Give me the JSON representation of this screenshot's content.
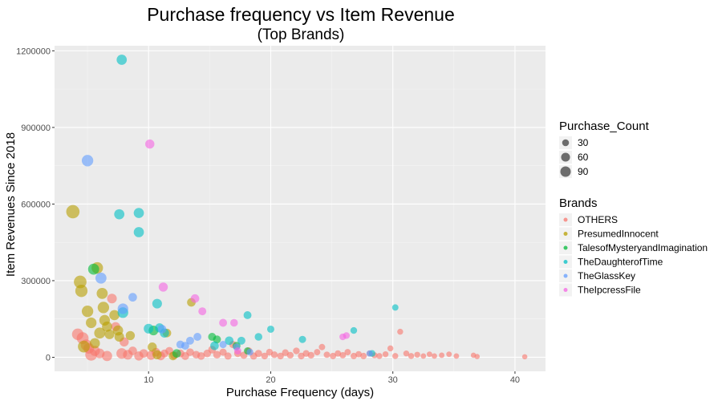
{
  "chart_data": {
    "type": "scatter",
    "title": "Purchase frequency vs Item Revenue",
    "subtitle": "(Top Brands)",
    "xlabel": "Purchase Frequency (days)",
    "ylabel": "Item Revenues Since 2018",
    "xlim": [
      2.3,
      42.5
    ],
    "ylim": [
      -55000,
      1220000
    ],
    "x_ticks": [
      10,
      20,
      30,
      40
    ],
    "y_ticks": [
      0,
      300000,
      600000,
      900000,
      1200000
    ],
    "x_tick_labels": [
      "10",
      "20",
      "30",
      "40"
    ],
    "y_tick_labels": [
      "0",
      "300000",
      "600000",
      "900000",
      "1200000"
    ],
    "grid": true,
    "size_legend": {
      "title": "Purchase_Count",
      "entries": [
        {
          "label": "30",
          "count": 30
        },
        {
          "label": "60",
          "count": 60
        },
        {
          "label": "90",
          "count": 90
        }
      ]
    },
    "color_legend": {
      "title": "Brands",
      "placement": "right"
    },
    "series": [
      {
        "name": "OTHERS",
        "color": "#F8766D",
        "points": [
          [
            4.2,
            90000,
            55
          ],
          [
            4.6,
            75000,
            60
          ],
          [
            4.9,
            48000,
            50
          ],
          [
            5.1,
            35000,
            45
          ],
          [
            5.3,
            10000,
            60
          ],
          [
            5.6,
            25000,
            40
          ],
          [
            6.0,
            15000,
            35
          ],
          [
            6.6,
            5000,
            40
          ],
          [
            7.0,
            230000,
            35
          ],
          [
            7.3,
            120000,
            30
          ],
          [
            7.8,
            15000,
            45
          ],
          [
            8.0,
            60000,
            30
          ],
          [
            8.3,
            10000,
            35
          ],
          [
            8.7,
            25000,
            25
          ],
          [
            9.2,
            5000,
            30
          ],
          [
            9.6,
            15000,
            25
          ],
          [
            10.2,
            8000,
            30
          ],
          [
            10.6,
            20000,
            25
          ],
          [
            11.0,
            5000,
            25
          ],
          [
            11.3,
            15000,
            20
          ],
          [
            11.7,
            25000,
            20
          ],
          [
            12.1,
            8000,
            20
          ],
          [
            12.6,
            15000,
            20
          ],
          [
            13.0,
            5000,
            20
          ],
          [
            13.4,
            20000,
            18
          ],
          [
            13.9,
            10000,
            18
          ],
          [
            14.3,
            5000,
            18
          ],
          [
            14.8,
            15000,
            18
          ],
          [
            15.2,
            30000,
            18
          ],
          [
            15.6,
            10000,
            18
          ],
          [
            16.1,
            20000,
            15
          ],
          [
            16.5,
            5000,
            15
          ],
          [
            16.9,
            50000,
            15
          ],
          [
            17.3,
            15000,
            15
          ],
          [
            17.8,
            8000,
            15
          ],
          [
            18.2,
            25000,
            15
          ],
          [
            18.6,
            5000,
            15
          ],
          [
            19.0,
            15000,
            15
          ],
          [
            19.5,
            5000,
            12
          ],
          [
            19.9,
            20000,
            12
          ],
          [
            20.3,
            10000,
            12
          ],
          [
            20.8,
            5000,
            12
          ],
          [
            21.2,
            18000,
            12
          ],
          [
            21.6,
            8000,
            12
          ],
          [
            22.1,
            25000,
            12
          ],
          [
            22.5,
            5000,
            12
          ],
          [
            22.9,
            15000,
            12
          ],
          [
            23.3,
            8000,
            12
          ],
          [
            23.8,
            20000,
            10
          ],
          [
            24.2,
            40000,
            10
          ],
          [
            24.6,
            10000,
            10
          ],
          [
            25.1,
            5000,
            10
          ],
          [
            25.5,
            15000,
            10
          ],
          [
            25.9,
            8000,
            10
          ],
          [
            26.3,
            20000,
            10
          ],
          [
            26.8,
            5000,
            10
          ],
          [
            27.2,
            12000,
            10
          ],
          [
            27.6,
            5000,
            10
          ],
          [
            28.1,
            15000,
            8
          ],
          [
            28.5,
            8000,
            8
          ],
          [
            28.9,
            5000,
            8
          ],
          [
            29.4,
            12000,
            8
          ],
          [
            29.8,
            35000,
            8
          ],
          [
            30.2,
            5000,
            8
          ],
          [
            30.6,
            100000,
            8
          ],
          [
            31.1,
            15000,
            8
          ],
          [
            31.5,
            5000,
            8
          ],
          [
            32.0,
            10000,
            8
          ],
          [
            32.5,
            5000,
            6
          ],
          [
            33.0,
            12000,
            6
          ],
          [
            33.4,
            5000,
            6
          ],
          [
            34.0,
            8000,
            6
          ],
          [
            34.6,
            12000,
            6
          ],
          [
            35.2,
            5000,
            6
          ],
          [
            36.6,
            8000,
            5
          ],
          [
            36.9,
            3000,
            5
          ],
          [
            40.8,
            2000,
            5
          ]
        ]
      },
      {
        "name": "PresumedInnocent",
        "color": "#B79F00",
        "points": [
          [
            3.8,
            570000,
            80
          ],
          [
            4.4,
            295000,
            70
          ],
          [
            4.5,
            260000,
            65
          ],
          [
            4.7,
            42000,
            60
          ],
          [
            5.0,
            180000,
            55
          ],
          [
            5.3,
            135000,
            45
          ],
          [
            5.6,
            55000,
            40
          ],
          [
            5.8,
            350000,
            55
          ],
          [
            6.0,
            95000,
            50
          ],
          [
            6.2,
            250000,
            50
          ],
          [
            6.3,
            195000,
            55
          ],
          [
            6.4,
            145000,
            45
          ],
          [
            6.6,
            120000,
            40
          ],
          [
            6.8,
            90000,
            35
          ],
          [
            7.2,
            165000,
            40
          ],
          [
            7.5,
            105000,
            40
          ],
          [
            7.6,
            80000,
            35
          ],
          [
            8.5,
            85000,
            30
          ],
          [
            10.3,
            40000,
            30
          ],
          [
            10.7,
            10000,
            30
          ],
          [
            11.5,
            95000,
            25
          ],
          [
            13.5,
            215000,
            25
          ],
          [
            12.0,
            5000,
            25
          ]
        ]
      },
      {
        "name": "TalesofMysteryandImagination",
        "color": "#00BA38",
        "points": [
          [
            5.5,
            345000,
            50
          ],
          [
            10.4,
            105000,
            35
          ],
          [
            12.3,
            15000,
            25
          ],
          [
            15.2,
            80000,
            20
          ],
          [
            15.6,
            70000,
            20
          ],
          [
            17.2,
            45000,
            20
          ],
          [
            18.1,
            25000,
            15
          ]
        ]
      },
      {
        "name": "TheDaughterofTime",
        "color": "#00BFC4",
        "points": [
          [
            7.8,
            1165000,
            40
          ],
          [
            7.6,
            560000,
            40
          ],
          [
            9.2,
            565000,
            40
          ],
          [
            9.2,
            490000,
            40
          ],
          [
            7.9,
            175000,
            45
          ],
          [
            10.7,
            210000,
            35
          ],
          [
            10.0,
            112000,
            35
          ],
          [
            10.9,
            115000,
            30
          ],
          [
            11.3,
            95000,
            30
          ],
          [
            15.4,
            45000,
            25
          ],
          [
            16.6,
            65000,
            25
          ],
          [
            17.6,
            65000,
            20
          ],
          [
            18.1,
            165000,
            20
          ],
          [
            19.0,
            80000,
            18
          ],
          [
            20.0,
            110000,
            15
          ],
          [
            22.6,
            70000,
            15
          ],
          [
            26.8,
            105000,
            12
          ],
          [
            28.3,
            15000,
            12
          ],
          [
            30.2,
            195000,
            10
          ]
        ]
      },
      {
        "name": "TheGlassKey",
        "color": "#619CFF",
        "points": [
          [
            5.0,
            770000,
            55
          ],
          [
            6.1,
            310000,
            50
          ],
          [
            7.9,
            190000,
            45
          ],
          [
            8.7,
            235000,
            25
          ],
          [
            11.1,
            110000,
            25
          ],
          [
            12.6,
            50000,
            20
          ],
          [
            13.0,
            45000,
            20
          ],
          [
            13.4,
            65000,
            20
          ],
          [
            14.0,
            80000,
            20
          ],
          [
            16.1,
            50000,
            15
          ],
          [
            17.2,
            40000,
            15
          ],
          [
            18.3,
            20000,
            12
          ],
          [
            28.1,
            15000,
            10
          ]
        ]
      },
      {
        "name": "TheIpcressFile",
        "color": "#F564E3",
        "points": [
          [
            10.1,
            835000,
            30
          ],
          [
            11.2,
            275000,
            30
          ],
          [
            13.8,
            230000,
            25
          ],
          [
            14.4,
            180000,
            20
          ],
          [
            16.1,
            135000,
            20
          ],
          [
            17.0,
            135000,
            18
          ],
          [
            17.3,
            25000,
            15
          ],
          [
            25.9,
            80000,
            12
          ],
          [
            26.2,
            85000,
            12
          ]
        ]
      }
    ]
  }
}
